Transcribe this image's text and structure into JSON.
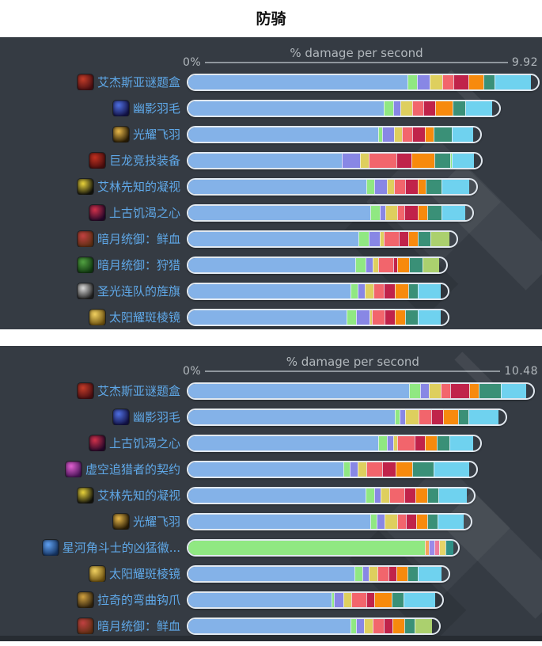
{
  "page_title": "防骑",
  "panel_bg": "#353b43",
  "label_color": "#5fa8e8",
  "axis_text_color": "#b2b8bd",
  "palette": {
    "blue": "#84b2e8",
    "green": "#90e882",
    "purple": "#8887e5",
    "yellow": "#decf5e",
    "salmon": "#f2656c",
    "crimson": "#c0234a",
    "orange": "#f78a0d",
    "teal": "#3a9077",
    "cyan": "#6fd2ef",
    "sage": "#abd06e",
    "ltorange": "#f5a55a",
    "ltpurple": "#9b8ae8",
    "pink": "#ef7b9b",
    "ltyellow": "#e6d468",
    "dkteal": "#2f9187"
  },
  "icons": {
    "puzzle-box-icon": [
      "#4a0f12",
      "#c23b28"
    ],
    "shadow-feather-icon": [
      "#131347",
      "#4f6fe0"
    ],
    "radiant-feather-icon": [
      "#2a1d05",
      "#e8b84a"
    ],
    "dragon-gear-icon": [
      "#4a0e0e",
      "#c03020"
    ],
    "seer-gaze-icon": [
      "#14140c",
      "#e8d23a"
    ],
    "hunger-heart-icon": [
      "#26082a",
      "#d0304a"
    ],
    "darkmoon-blood-icon": [
      "#5e2f14",
      "#c04040"
    ],
    "darkmoon-hunt-icon": [
      "#123a12",
      "#50a040"
    ],
    "banner-icon": [
      "#222222",
      "#d8d8d8"
    ],
    "sunflare-prism-icon": [
      "#6e5210",
      "#f0d060"
    ],
    "void-pact-icon": [
      "#4a1458",
      "#e060d0"
    ],
    "gladiator-badge-icon": [
      "#163564",
      "#60a0f0"
    ],
    "curved-hook-icon": [
      "#33250e",
      "#d0a040"
    ]
  },
  "chart_data": [
    {
      "type": "bar",
      "stacked": true,
      "orientation": "horizontal",
      "title": "% damage per second",
      "xlabel": "% damage per second",
      "xlim": [
        0,
        9.92
      ],
      "axis_min_label": "0%",
      "axis_max_label": "9.92",
      "grid": false,
      "legend": "none",
      "categories": [
        "艾杰斯亚谜题盒",
        "幽影羽毛",
        "光耀飞羽",
        "巨龙竞技装备",
        "艾林先知的凝视",
        "上古饥渴之心",
        "暗月统御：鲜血",
        "暗月统御：狩猎",
        "圣光连队的旌旗",
        "太阳耀斑棱镜"
      ],
      "bars": [
        {
          "label": "艾杰斯亚谜题盒",
          "icon": "puzzle-box-icon",
          "segments": [
            [
              "blue",
              6.25
            ],
            [
              "green",
              0.27
            ],
            [
              "purple",
              0.36
            ],
            [
              "yellow",
              0.36
            ],
            [
              "salmon",
              0.31
            ],
            [
              "crimson",
              0.43
            ],
            [
              "orange",
              0.43
            ],
            [
              "teal",
              0.31
            ],
            [
              "cyan",
              1.05
            ]
          ]
        },
        {
          "label": "幽影羽毛",
          "icon": "shadow-feather-icon",
          "segments": [
            [
              "blue",
              5.56
            ],
            [
              "green",
              0.27
            ],
            [
              "purple",
              0.22
            ],
            [
              "yellow",
              0.34
            ],
            [
              "salmon",
              0.31
            ],
            [
              "crimson",
              0.34
            ],
            [
              "orange",
              0.49
            ],
            [
              "teal",
              0.36
            ],
            [
              "cyan",
              0.76
            ]
          ]
        },
        {
          "label": "光耀飞羽",
          "icon": "radiant-feather-icon",
          "segments": [
            [
              "blue",
              5.41
            ],
            [
              "green",
              0.11
            ],
            [
              "purple",
              0.34
            ],
            [
              "yellow",
              0.22
            ],
            [
              "salmon",
              0.29
            ],
            [
              "crimson",
              0.38
            ],
            [
              "orange",
              0.25
            ],
            [
              "teal",
              0.51
            ],
            [
              "cyan",
              0.6
            ]
          ]
        },
        {
          "label": "巨龙竞技装备",
          "icon": "dragon-gear-icon",
          "segments": [
            [
              "blue",
              4.38
            ],
            [
              "purple",
              0.51
            ],
            [
              "yellow",
              0.25
            ],
            [
              "salmon",
              0.8
            ],
            [
              "crimson",
              0.43
            ],
            [
              "orange",
              0.65
            ],
            [
              "teal",
              0.45
            ],
            [
              "green",
              0.05
            ],
            [
              "cyan",
              0.63
            ]
          ]
        },
        {
          "label": "艾林先知的凝视",
          "icon": "seer-gaze-icon",
          "segments": [
            [
              "blue",
              5.07
            ],
            [
              "green",
              0.22
            ],
            [
              "purple",
              0.36
            ],
            [
              "yellow",
              0.22
            ],
            [
              "salmon",
              0.31
            ],
            [
              "crimson",
              0.36
            ],
            [
              "orange",
              0.22
            ],
            [
              "teal",
              0.45
            ],
            [
              "cyan",
              0.8
            ]
          ]
        },
        {
          "label": "上古饥渴之心",
          "icon": "hunger-heart-icon",
          "segments": [
            [
              "blue",
              5.18
            ],
            [
              "green",
              0.27
            ],
            [
              "purple",
              0.16
            ],
            [
              "yellow",
              0.34
            ],
            [
              "salmon",
              0.2
            ],
            [
              "crimson",
              0.4
            ],
            [
              "orange",
              0.25
            ],
            [
              "teal",
              0.42
            ],
            [
              "cyan",
              0.67
            ]
          ]
        },
        {
          "label": "暗月统御：鲜血",
          "icon": "darkmoon-blood-icon",
          "segments": [
            [
              "blue",
              4.85
            ],
            [
              "green",
              0.29
            ],
            [
              "purple",
              0.31
            ],
            [
              "yellow",
              0.11
            ],
            [
              "salmon",
              0.43
            ],
            [
              "crimson",
              0.27
            ],
            [
              "orange",
              0.29
            ],
            [
              "teal",
              0.36
            ],
            [
              "sage",
              0.54
            ]
          ]
        },
        {
          "label": "暗月统御：狩猎",
          "icon": "darkmoon-hunt-icon",
          "segments": [
            [
              "blue",
              4.76
            ],
            [
              "green",
              0.29
            ],
            [
              "purple",
              0.2
            ],
            [
              "yellow",
              0.16
            ],
            [
              "salmon",
              0.43
            ],
            [
              "crimson",
              0.11
            ],
            [
              "orange",
              0.34
            ],
            [
              "teal",
              0.38
            ],
            [
              "sage",
              0.47
            ]
          ]
        },
        {
          "label": "圣光连队的旌旗",
          "icon": "banner-icon",
          "segments": [
            [
              "blue",
              4.62
            ],
            [
              "green",
              0.2
            ],
            [
              "purple",
              0.2
            ],
            [
              "yellow",
              0.25
            ],
            [
              "salmon",
              0.31
            ],
            [
              "crimson",
              0.31
            ],
            [
              "orange",
              0.38
            ],
            [
              "teal",
              0.27
            ],
            [
              "cyan",
              0.65
            ]
          ]
        },
        {
          "label": "太阳耀斑棱镜",
          "icon": "sunflare-prism-icon",
          "segments": [
            [
              "blue",
              4.51
            ],
            [
              "green",
              0.27
            ],
            [
              "purple",
              0.38
            ],
            [
              "yellow",
              0.07
            ],
            [
              "salmon",
              0.36
            ],
            [
              "crimson",
              0.29
            ],
            [
              "orange",
              0.29
            ],
            [
              "teal",
              0.36
            ],
            [
              "cyan",
              0.67
            ]
          ]
        }
      ]
    },
    {
      "type": "bar",
      "stacked": true,
      "orientation": "horizontal",
      "title": "% damage per second",
      "xlabel": "% damage per second",
      "xlim": [
        0,
        10.48
      ],
      "axis_min_label": "0%",
      "axis_max_label": "10.48",
      "grid": false,
      "legend": "none",
      "categories": [
        "艾杰斯亚谜题盒",
        "幽影羽毛",
        "上古饥渴之心",
        "虚空追猎者的契约",
        "艾林先知的凝视",
        "光耀飞羽",
        "星河角斗士的凶猛徽...",
        "太阳耀斑棱镜",
        "拉奇的弯曲钩爪",
        "暗月统御：鲜血"
      ],
      "bars": [
        {
          "label": "艾杰斯亚谜题盒",
          "icon": "puzzle-box-icon",
          "segments": [
            [
              "blue",
              6.64
            ],
            [
              "green",
              0.33
            ],
            [
              "purple",
              0.26
            ],
            [
              "yellow",
              0.38
            ],
            [
              "salmon",
              0.28
            ],
            [
              "crimson",
              0.57
            ],
            [
              "orange",
              0.28
            ],
            [
              "teal",
              0.66
            ],
            [
              "cyan",
              0.78
            ]
          ]
        },
        {
          "label": "幽影羽毛",
          "icon": "shadow-feather-icon",
          "segments": [
            [
              "blue",
              6.21
            ],
            [
              "green",
              0.14
            ],
            [
              "purple",
              0.17
            ],
            [
              "yellow",
              0.4
            ],
            [
              "salmon",
              0.4
            ],
            [
              "crimson",
              0.36
            ],
            [
              "orange",
              0.45
            ],
            [
              "teal",
              0.31
            ],
            [
              "cyan",
              0.9
            ]
          ]
        },
        {
          "label": "上古饥渴之心",
          "icon": "hunger-heart-icon",
          "segments": [
            [
              "blue",
              5.71
            ],
            [
              "green",
              0.28
            ],
            [
              "purple",
              0.19
            ],
            [
              "yellow",
              0.12
            ],
            [
              "salmon",
              0.52
            ],
            [
              "crimson",
              0.31
            ],
            [
              "orange",
              0.36
            ],
            [
              "teal",
              0.38
            ],
            [
              "cyan",
              0.71
            ]
          ]
        },
        {
          "label": "虚空追猎者的契约",
          "icon": "void-pact-icon",
          "segments": [
            [
              "blue",
              4.67
            ],
            [
              "green",
              0.19
            ],
            [
              "purple",
              0.24
            ],
            [
              "yellow",
              0.26
            ],
            [
              "salmon",
              0.47
            ],
            [
              "crimson",
              0.4
            ],
            [
              "orange",
              0.52
            ],
            [
              "teal",
              0.64
            ],
            [
              "cyan",
              1.07
            ]
          ]
        },
        {
          "label": "艾林先知的凝视",
          "icon": "seer-gaze-icon",
          "segments": [
            [
              "blue",
              5.33
            ],
            [
              "green",
              0.26
            ],
            [
              "purple",
              0.19
            ],
            [
              "yellow",
              0.26
            ],
            [
              "salmon",
              0.47
            ],
            [
              "crimson",
              0.33
            ],
            [
              "orange",
              0.36
            ],
            [
              "teal",
              0.33
            ],
            [
              "cyan",
              0.85
            ]
          ]
        },
        {
          "label": "光耀飞羽",
          "icon": "radiant-feather-icon",
          "segments": [
            [
              "blue",
              5.48
            ],
            [
              "green",
              0.19
            ],
            [
              "purple",
              0.24
            ],
            [
              "yellow",
              0.38
            ],
            [
              "salmon",
              0.26
            ],
            [
              "crimson",
              0.31
            ],
            [
              "orange",
              0.33
            ],
            [
              "teal",
              0.31
            ],
            [
              "cyan",
              0.78
            ]
          ]
        },
        {
          "label": "星河角斗士的凶猛徽...",
          "icon": "gladiator-badge-icon",
          "segments": [
            [
              "green",
              7.11
            ],
            [
              "ltorange",
              0.12
            ],
            [
              "ltpurple",
              0.17
            ],
            [
              "pink",
              0.14
            ],
            [
              "ltyellow",
              0.19
            ],
            [
              "dkteal",
              0.26
            ]
          ]
        },
        {
          "label": "太阳耀斑棱镜",
          "icon": "sunflare-prism-icon",
          "segments": [
            [
              "blue",
              5.0
            ],
            [
              "green",
              0.24
            ],
            [
              "purple",
              0.19
            ],
            [
              "yellow",
              0.26
            ],
            [
              "salmon",
              0.33
            ],
            [
              "crimson",
              0.24
            ],
            [
              "orange",
              0.33
            ],
            [
              "teal",
              0.33
            ],
            [
              "cyan",
              0.71
            ]
          ]
        },
        {
          "label": "拉奇的弯曲钩爪",
          "icon": "curved-hook-icon",
          "segments": [
            [
              "blue",
              4.32
            ],
            [
              "green",
              0.07
            ],
            [
              "purple",
              0.28
            ],
            [
              "yellow",
              0.24
            ],
            [
              "salmon",
              0.45
            ],
            [
              "crimson",
              0.24
            ],
            [
              "orange",
              0.52
            ],
            [
              "teal",
              0.36
            ],
            [
              "cyan",
              0.95
            ]
          ]
        },
        {
          "label": "暗月统御：鲜血",
          "icon": "darkmoon-blood-icon",
          "segments": [
            [
              "blue",
              4.88
            ],
            [
              "green",
              0.17
            ],
            [
              "purple",
              0.24
            ],
            [
              "yellow",
              0.26
            ],
            [
              "salmon",
              0.33
            ],
            [
              "crimson",
              0.26
            ],
            [
              "orange",
              0.36
            ],
            [
              "teal",
              0.31
            ],
            [
              "sage",
              0.52
            ]
          ]
        }
      ]
    }
  ]
}
